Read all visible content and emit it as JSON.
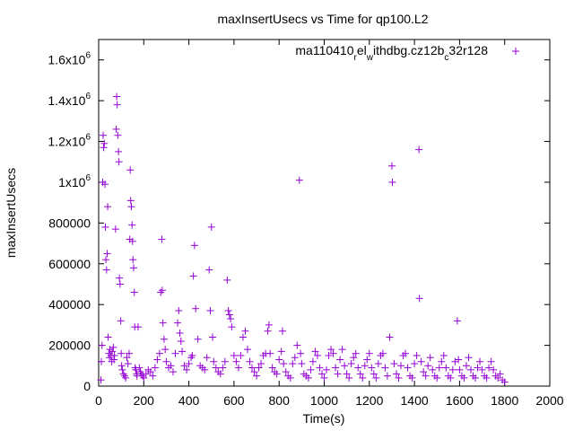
{
  "chart_data": {
    "type": "scatter",
    "title": "maxInsertUsecs vs Time for qp100.L2",
    "xlabel": "Time(s)",
    "ylabel": "maxInsertUsecs",
    "xlim": [
      0,
      2000
    ],
    "ylim": [
      0,
      1700000
    ],
    "x_ticks": [
      {
        "value": 0,
        "label": "0"
      },
      {
        "value": 200,
        "label": "200"
      },
      {
        "value": 400,
        "label": "400"
      },
      {
        "value": 600,
        "label": "600"
      },
      {
        "value": 800,
        "label": "800"
      },
      {
        "value": 1000,
        "label": "1000"
      },
      {
        "value": 1200,
        "label": "1200"
      },
      {
        "value": 1400,
        "label": "1400"
      },
      {
        "value": 1600,
        "label": "1600"
      },
      {
        "value": 1800,
        "label": "1800"
      },
      {
        "value": 2000,
        "label": "2000"
      }
    ],
    "y_ticks": [
      {
        "value": 0,
        "base": "0",
        "exp": ""
      },
      {
        "value": 200000,
        "base": "200000",
        "exp": ""
      },
      {
        "value": 400000,
        "base": "400000",
        "exp": ""
      },
      {
        "value": 600000,
        "base": "600000",
        "exp": ""
      },
      {
        "value": 800000,
        "base": "800000",
        "exp": ""
      },
      {
        "value": 1000000,
        "base": "1x10",
        "exp": "6"
      },
      {
        "value": 1200000,
        "base": "1.2x10",
        "exp": "6"
      },
      {
        "value": 1400000,
        "base": "1.4x10",
        "exp": "6"
      },
      {
        "value": 1600000,
        "base": "1.6x10",
        "exp": "6"
      }
    ],
    "grid": false,
    "legend_position": "top-right",
    "series": [
      {
        "name_parts": [
          {
            "text": "ma110410",
            "sub": false
          },
          {
            "text": "r",
            "sub": true
          },
          {
            "text": "el",
            "sub": false
          },
          {
            "text": "w",
            "sub": true
          },
          {
            "text": "ithdbg.cz12b",
            "sub": false
          },
          {
            "text": "c",
            "sub": true
          },
          {
            "text": "32r128",
            "sub": false
          }
        ],
        "color": "#9400d3",
        "points": [
          [
            10,
            30000
          ],
          [
            12,
            120000
          ],
          [
            15,
            200000
          ],
          [
            18,
            1000000
          ],
          [
            20,
            1230000
          ],
          [
            22,
            1170000
          ],
          [
            25,
            1190000
          ],
          [
            28,
            990000
          ],
          [
            30,
            780000
          ],
          [
            32,
            620000
          ],
          [
            35,
            570000
          ],
          [
            38,
            650000
          ],
          [
            40,
            880000
          ],
          [
            42,
            240000
          ],
          [
            45,
            160000
          ],
          [
            48,
            140000
          ],
          [
            50,
            180000
          ],
          [
            55,
            150000
          ],
          [
            58,
            120000
          ],
          [
            60,
            170000
          ],
          [
            65,
            190000
          ],
          [
            68,
            130000
          ],
          [
            70,
            150000
          ],
          [
            75,
            770000
          ],
          [
            78,
            1260000
          ],
          [
            80,
            1420000
          ],
          [
            82,
            1380000
          ],
          [
            85,
            1230000
          ],
          [
            88,
            1150000
          ],
          [
            90,
            1100000
          ],
          [
            92,
            530000
          ],
          [
            95,
            500000
          ],
          [
            98,
            320000
          ],
          [
            100,
            160000
          ],
          [
            102,
            100000
          ],
          [
            105,
            80000
          ],
          [
            110,
            60000
          ],
          [
            115,
            50000
          ],
          [
            120,
            40000
          ],
          [
            125,
            140000
          ],
          [
            130,
            110000
          ],
          [
            135,
            160000
          ],
          [
            138,
            720000
          ],
          [
            140,
            1060000
          ],
          [
            142,
            910000
          ],
          [
            145,
            880000
          ],
          [
            148,
            790000
          ],
          [
            150,
            710000
          ],
          [
            152,
            620000
          ],
          [
            155,
            580000
          ],
          [
            158,
            460000
          ],
          [
            160,
            290000
          ],
          [
            162,
            90000
          ],
          [
            165,
            80000
          ],
          [
            168,
            60000
          ],
          [
            170,
            50000
          ],
          [
            175,
            290000
          ],
          [
            180,
            90000
          ],
          [
            185,
            70000
          ],
          [
            190,
            60000
          ],
          [
            195,
            50000
          ],
          [
            200,
            40000
          ],
          [
            210,
            60000
          ],
          [
            220,
            80000
          ],
          [
            230,
            70000
          ],
          [
            240,
            50000
          ],
          [
            250,
            90000
          ],
          [
            260,
            130000
          ],
          [
            270,
            160000
          ],
          [
            275,
            460000
          ],
          [
            280,
            720000
          ],
          [
            282,
            470000
          ],
          [
            285,
            310000
          ],
          [
            290,
            230000
          ],
          [
            295,
            180000
          ],
          [
            300,
            120000
          ],
          [
            310,
            90000
          ],
          [
            320,
            100000
          ],
          [
            330,
            70000
          ],
          [
            340,
            160000
          ],
          [
            350,
            310000
          ],
          [
            355,
            370000
          ],
          [
            360,
            260000
          ],
          [
            365,
            220000
          ],
          [
            370,
            170000
          ],
          [
            380,
            100000
          ],
          [
            390,
            80000
          ],
          [
            400,
            110000
          ],
          [
            410,
            140000
          ],
          [
            415,
            150000
          ],
          [
            420,
            540000
          ],
          [
            425,
            690000
          ],
          [
            430,
            380000
          ],
          [
            440,
            230000
          ],
          [
            450,
            100000
          ],
          [
            460,
            90000
          ],
          [
            470,
            80000
          ],
          [
            480,
            140000
          ],
          [
            490,
            570000
          ],
          [
            495,
            370000
          ],
          [
            500,
            780000
          ],
          [
            505,
            240000
          ],
          [
            510,
            120000
          ],
          [
            520,
            90000
          ],
          [
            530,
            70000
          ],
          [
            540,
            60000
          ],
          [
            550,
            90000
          ],
          [
            560,
            120000
          ],
          [
            570,
            520000
          ],
          [
            575,
            370000
          ],
          [
            580,
            350000
          ],
          [
            585,
            330000
          ],
          [
            590,
            290000
          ],
          [
            600,
            150000
          ],
          [
            610,
            120000
          ],
          [
            620,
            90000
          ],
          [
            630,
            150000
          ],
          [
            640,
            240000
          ],
          [
            650,
            270000
          ],
          [
            660,
            180000
          ],
          [
            670,
            120000
          ],
          [
            680,
            90000
          ],
          [
            690,
            70000
          ],
          [
            700,
            50000
          ],
          [
            710,
            90000
          ],
          [
            720,
            110000
          ],
          [
            730,
            150000
          ],
          [
            740,
            160000
          ],
          [
            750,
            270000
          ],
          [
            755,
            300000
          ],
          [
            760,
            160000
          ],
          [
            770,
            90000
          ],
          [
            780,
            70000
          ],
          [
            790,
            60000
          ],
          [
            800,
            130000
          ],
          [
            810,
            170000
          ],
          [
            815,
            270000
          ],
          [
            820,
            110000
          ],
          [
            830,
            70000
          ],
          [
            840,
            50000
          ],
          [
            850,
            40000
          ],
          [
            860,
            110000
          ],
          [
            870,
            140000
          ],
          [
            880,
            200000
          ],
          [
            890,
            1010000
          ],
          [
            895,
            160000
          ],
          [
            900,
            110000
          ],
          [
            910,
            60000
          ],
          [
            920,
            50000
          ],
          [
            930,
            40000
          ],
          [
            940,
            80000
          ],
          [
            950,
            120000
          ],
          [
            960,
            170000
          ],
          [
            970,
            150000
          ],
          [
            980,
            90000
          ],
          [
            990,
            60000
          ],
          [
            1000,
            40000
          ],
          [
            1010,
            80000
          ],
          [
            1020,
            150000
          ],
          [
            1030,
            180000
          ],
          [
            1040,
            160000
          ],
          [
            1050,
            90000
          ],
          [
            1060,
            60000
          ],
          [
            1070,
            130000
          ],
          [
            1080,
            180000
          ],
          [
            1090,
            100000
          ],
          [
            1100,
            60000
          ],
          [
            1110,
            40000
          ],
          [
            1120,
            110000
          ],
          [
            1130,
            140000
          ],
          [
            1140,
            160000
          ],
          [
            1150,
            90000
          ],
          [
            1160,
            60000
          ],
          [
            1170,
            40000
          ],
          [
            1180,
            100000
          ],
          [
            1190,
            130000
          ],
          [
            1200,
            160000
          ],
          [
            1210,
            90000
          ],
          [
            1220,
            60000
          ],
          [
            1230,
            40000
          ],
          [
            1240,
            110000
          ],
          [
            1250,
            150000
          ],
          [
            1260,
            160000
          ],
          [
            1270,
            90000
          ],
          [
            1280,
            50000
          ],
          [
            1290,
            240000
          ],
          [
            1300,
            1080000
          ],
          [
            1302,
            1000000
          ],
          [
            1310,
            110000
          ],
          [
            1320,
            60000
          ],
          [
            1330,
            40000
          ],
          [
            1340,
            100000
          ],
          [
            1350,
            150000
          ],
          [
            1360,
            160000
          ],
          [
            1370,
            90000
          ],
          [
            1380,
            50000
          ],
          [
            1390,
            40000
          ],
          [
            1400,
            110000
          ],
          [
            1410,
            150000
          ],
          [
            1420,
            1160000
          ],
          [
            1422,
            430000
          ],
          [
            1430,
            120000
          ],
          [
            1440,
            70000
          ],
          [
            1450,
            50000
          ],
          [
            1460,
            100000
          ],
          [
            1470,
            140000
          ],
          [
            1480,
            80000
          ],
          [
            1490,
            50000
          ],
          [
            1500,
            40000
          ],
          [
            1510,
            90000
          ],
          [
            1520,
            120000
          ],
          [
            1530,
            150000
          ],
          [
            1540,
            90000
          ],
          [
            1550,
            50000
          ],
          [
            1560,
            40000
          ],
          [
            1570,
            80000
          ],
          [
            1580,
            120000
          ],
          [
            1590,
            320000
          ],
          [
            1595,
            130000
          ],
          [
            1600,
            80000
          ],
          [
            1610,
            50000
          ],
          [
            1620,
            40000
          ],
          [
            1630,
            100000
          ],
          [
            1640,
            140000
          ],
          [
            1650,
            80000
          ],
          [
            1660,
            50000
          ],
          [
            1670,
            40000
          ],
          [
            1680,
            90000
          ],
          [
            1690,
            120000
          ],
          [
            1700,
            80000
          ],
          [
            1710,
            50000
          ],
          [
            1720,
            40000
          ],
          [
            1730,
            90000
          ],
          [
            1740,
            120000
          ],
          [
            1750,
            80000
          ],
          [
            1760,
            50000
          ],
          [
            1770,
            40000
          ],
          [
            1780,
            60000
          ],
          [
            1790,
            30000
          ],
          [
            1800,
            20000
          ]
        ]
      }
    ]
  }
}
